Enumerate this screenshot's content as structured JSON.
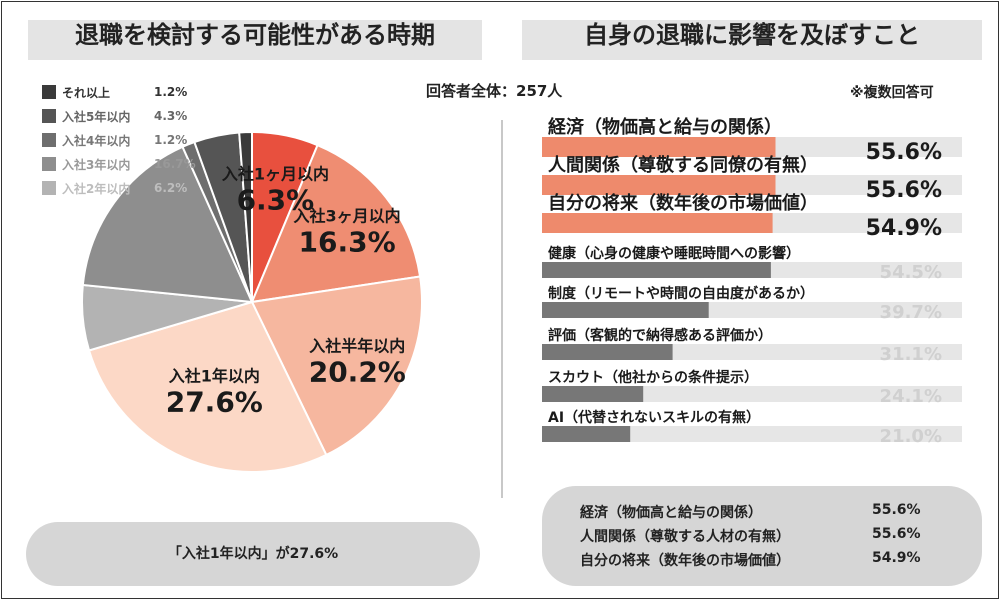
{
  "left_title": "退職を検討する可能性がある時期",
  "right_title": "自身の退職に影響を及ぼすこと",
  "respondents": "回答者全体：257人",
  "multi_note": "※複数回答可",
  "left_summary": "「入社1年以内」が27.6%",
  "right_summary": [
    {
      "label": "経済（物価高と給与の関係）",
      "value": "55.6%"
    },
    {
      "label": "人間関係（尊敬する人材の有無）",
      "value": "55.6%"
    },
    {
      "label": "自分の将来（数年後の市場価値）",
      "value": "54.9%"
    }
  ],
  "chart_data": [
    {
      "type": "pie",
      "title": "退職を検討する可能性がある時期",
      "slices": [
        {
          "name": "入社1ヶ月以内",
          "value": 6.3,
          "value_label": "6.3%",
          "color": "#e8503e",
          "text_color": "#1a1a1a"
        },
        {
          "name": "入社3ヶ月以内",
          "value": 16.3,
          "value_label": "16.3%",
          "color": "#ef8d72",
          "text_color": "#1a1a1a"
        },
        {
          "name": "入社半年以内",
          "value": 20.2,
          "value_label": "20.2%",
          "color": "#f6b79f",
          "text_color": "#1a1a1a"
        },
        {
          "name": "入社1年以内",
          "value": 27.6,
          "value_label": "27.6%",
          "color": "#fcd8c6",
          "text_color": "#1a1a1a"
        },
        {
          "name": "入社2年以内",
          "value": 6.2,
          "value_label": "6.2%",
          "color": "#b3b3b3",
          "text_color": "#bdbdbd"
        },
        {
          "name": "入社3年以内",
          "value": 16.7,
          "value_label": "16.7%",
          "color": "#8e8e8e",
          "text_color": "#999999"
        },
        {
          "name": "入社4年以内",
          "value": 1.2,
          "value_label": "1.2%",
          "color": "#6e6e6e",
          "text_color": "#777777"
        },
        {
          "name": "入社5年以内",
          "value": 4.3,
          "value_label": "4.3%",
          "color": "#555555",
          "text_color": "#666666"
        },
        {
          "name": "それ以上",
          "value": 1.2,
          "value_label": "1.2%",
          "color": "#3a3a3a",
          "text_color": "#333333"
        }
      ],
      "legend_order": [
        "それ以上",
        "入社5年以内",
        "入社4年以内",
        "入社3年以内",
        "入社2年以内"
      ],
      "labeled_slices": [
        "入社1ヶ月以内",
        "入社3ヶ月以内",
        "入社半年以内",
        "入社1年以内"
      ]
    },
    {
      "type": "bar",
      "title": "自身の退職に影響を及ぼすこと",
      "orientation": "horizontal",
      "xlim": [
        0,
        100
      ],
      "categories": [
        "経済（物価高と給与の関係）",
        "人間関係（尊敬する同僚の有無）",
        "自分の将来（数年後の市場価値）",
        "健康（心身の健康や睡眠時間への影響）",
        "制度（リモートや時間の自由度があるか）",
        "評価（客観的で納得感ある評価か）",
        "スカウト（他社からの条件提示）",
        "AI（代替されないスキルの有無）"
      ],
      "values": [
        55.6,
        55.6,
        54.9,
        54.5,
        39.7,
        31.1,
        24.1,
        21.0
      ],
      "value_labels": [
        "55.6%",
        "55.6%",
        "54.9%",
        "54.5%",
        "39.7%",
        "31.1%",
        "24.1%",
        "21.0%"
      ],
      "highlight_top": 3,
      "colors": {
        "highlight": "#ee8a6c",
        "normal": "#777777",
        "track": "#e6e6e6"
      }
    }
  ]
}
